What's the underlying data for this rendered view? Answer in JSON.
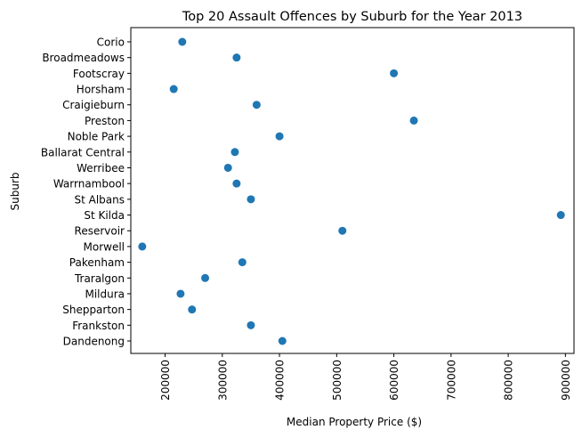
{
  "chart_data": {
    "type": "scatter",
    "title": "Top 20 Assault Offences by Suburb for the Year 2013",
    "xlabel": "Median Property Price ($)",
    "ylabel": "Suburb",
    "xlim": [
      140000,
      915000
    ],
    "xticks": [
      200000,
      300000,
      400000,
      500000,
      600000,
      700000,
      800000,
      900000
    ],
    "xtick_labels": [
      "200000",
      "300000",
      "400000",
      "500000",
      "600000",
      "700000",
      "800000",
      "900000"
    ],
    "grid": false,
    "marker_color": "#1f77b4",
    "points": [
      {
        "suburb": "Corio",
        "price": 230000
      },
      {
        "suburb": "Broadmeadows",
        "price": 325000
      },
      {
        "suburb": "Footscray",
        "price": 600000
      },
      {
        "suburb": "Horsham",
        "price": 215000
      },
      {
        "suburb": "Craigieburn",
        "price": 360000
      },
      {
        "suburb": "Preston",
        "price": 635000
      },
      {
        "suburb": "Noble Park",
        "price": 400000
      },
      {
        "suburb": "Ballarat Central",
        "price": 322000
      },
      {
        "suburb": "Werribee",
        "price": 310000
      },
      {
        "suburb": "Warrnambool",
        "price": 325000
      },
      {
        "suburb": "St Albans",
        "price": 350000
      },
      {
        "suburb": "St Kilda",
        "price": 892000
      },
      {
        "suburb": "Reservoir",
        "price": 510000
      },
      {
        "suburb": "Morwell",
        "price": 160000
      },
      {
        "suburb": "Pakenham",
        "price": 335000
      },
      {
        "suburb": "Traralgon",
        "price": 270000
      },
      {
        "suburb": "Mildura",
        "price": 227000
      },
      {
        "suburb": "Shepparton",
        "price": 247000
      },
      {
        "suburb": "Frankston",
        "price": 350000
      },
      {
        "suburb": "Dandenong",
        "price": 405000
      }
    ]
  }
}
